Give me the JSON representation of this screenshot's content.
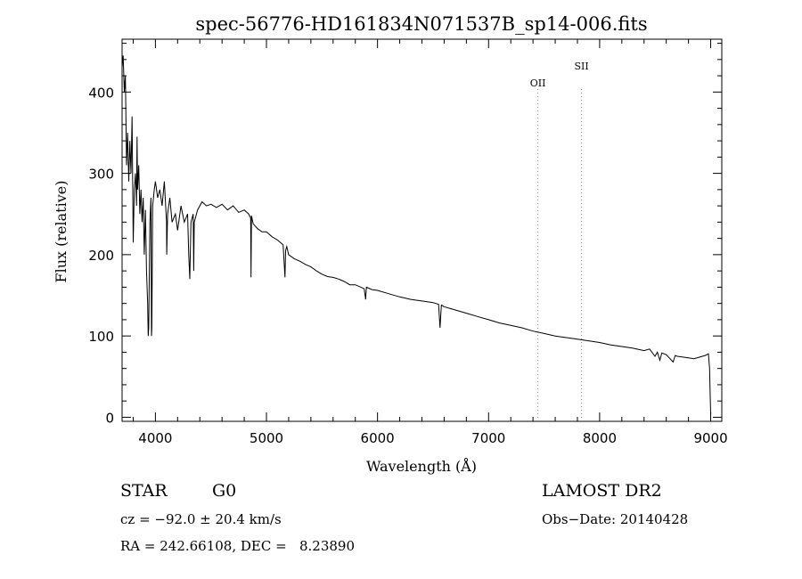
{
  "chart_data": {
    "type": "line",
    "title": "spec-56776-HD161834N071537B_sp14-006.fits",
    "xlabel": "Wavelength (Å)",
    "ylabel": "Flux (relative)",
    "xlim": [
      3700,
      9100
    ],
    "ylim": [
      -5,
      465
    ],
    "xticks": [
      4000,
      5000,
      6000,
      7000,
      8000,
      9000
    ],
    "yticks": [
      0,
      100,
      200,
      300,
      400
    ],
    "grid": false,
    "series": [
      {
        "x": [
          3700,
          3710,
          3720,
          3730,
          3740,
          3750,
          3760,
          3770,
          3780,
          3790,
          3800,
          3810,
          3820,
          3830,
          3835,
          3840,
          3850,
          3860,
          3870,
          3880,
          3890,
          3900,
          3910,
          3920,
          3930,
          3935,
          3940,
          3950,
          3960,
          3965,
          3968,
          3975,
          3990,
          4000,
          4020,
          4040,
          4060,
          4080,
          4100,
          4102,
          4110,
          4130,
          4150,
          4180,
          4200,
          4230,
          4260,
          4290,
          4300,
          4310,
          4320,
          4340,
          4345,
          4350,
          4380,
          4420,
          4460,
          4500,
          4550,
          4600,
          4650,
          4700,
          4750,
          4800,
          4840,
          4858,
          4861,
          4865,
          4880,
          4920,
          4960,
          5000,
          5050,
          5100,
          5150,
          5167,
          5172,
          5183,
          5200,
          5250,
          5300,
          5350,
          5400,
          5450,
          5500,
          5550,
          5600,
          5650,
          5700,
          5750,
          5800,
          5850,
          5880,
          5893,
          5900,
          5950,
          6000,
          6100,
          6200,
          6300,
          6400,
          6500,
          6550,
          6563,
          6575,
          6600,
          6700,
          6800,
          6900,
          7000,
          7100,
          7200,
          7300,
          7400,
          7500,
          7600,
          7700,
          7800,
          7900,
          8000,
          8100,
          8200,
          8300,
          8400,
          8450,
          8498,
          8520,
          8542,
          8560,
          8600,
          8662,
          8680,
          8700,
          8750,
          8800,
          8850,
          8900,
          8950,
          8980,
          8990,
          8995,
          9000,
          9005
        ],
        "y": [
          430,
          445,
          400,
          420,
          310,
          350,
          290,
          340,
          300,
          370,
          215,
          280,
          300,
          260,
          345,
          280,
          310,
          250,
          280,
          240,
          270,
          200,
          255,
          180,
          140,
          100,
          110,
          240,
          270,
          100,
          110,
          260,
          280,
          290,
          270,
          280,
          260,
          290,
          240,
          200,
          250,
          270,
          240,
          250,
          230,
          260,
          240,
          250,
          200,
          170,
          240,
          250,
          180,
          240,
          255,
          265,
          260,
          262,
          258,
          262,
          255,
          260,
          252,
          255,
          250,
          245,
          172,
          248,
          238,
          232,
          228,
          228,
          222,
          218,
          212,
          172,
          205,
          210,
          200,
          195,
          192,
          188,
          185,
          180,
          176,
          173,
          172,
          170,
          167,
          163,
          163,
          160,
          158,
          145,
          160,
          157,
          156,
          152,
          148,
          145,
          143,
          141,
          139,
          110,
          138,
          136,
          132,
          128,
          124,
          120,
          116,
          113,
          110,
          106,
          103,
          100,
          98,
          96,
          94,
          92,
          89,
          87,
          85,
          82,
          84,
          75,
          80,
          70,
          79,
          77,
          68,
          76,
          75,
          74,
          73,
          72,
          74,
          76,
          78,
          60,
          30,
          5,
          5
        ]
      }
    ],
    "annotations": [
      {
        "label": "OII",
        "x": 7444
      },
      {
        "label": "SII",
        "x": 7837
      }
    ]
  },
  "footer": {
    "object_type": "STAR",
    "spectral_class": "G0",
    "survey": "LAMOST DR2",
    "cz": "cz = −92.0 ± 20.4 km/s",
    "obs_date": "Obs−Date: 20140428",
    "coords": "RA = 242.66108, DEC =   8.23890"
  }
}
